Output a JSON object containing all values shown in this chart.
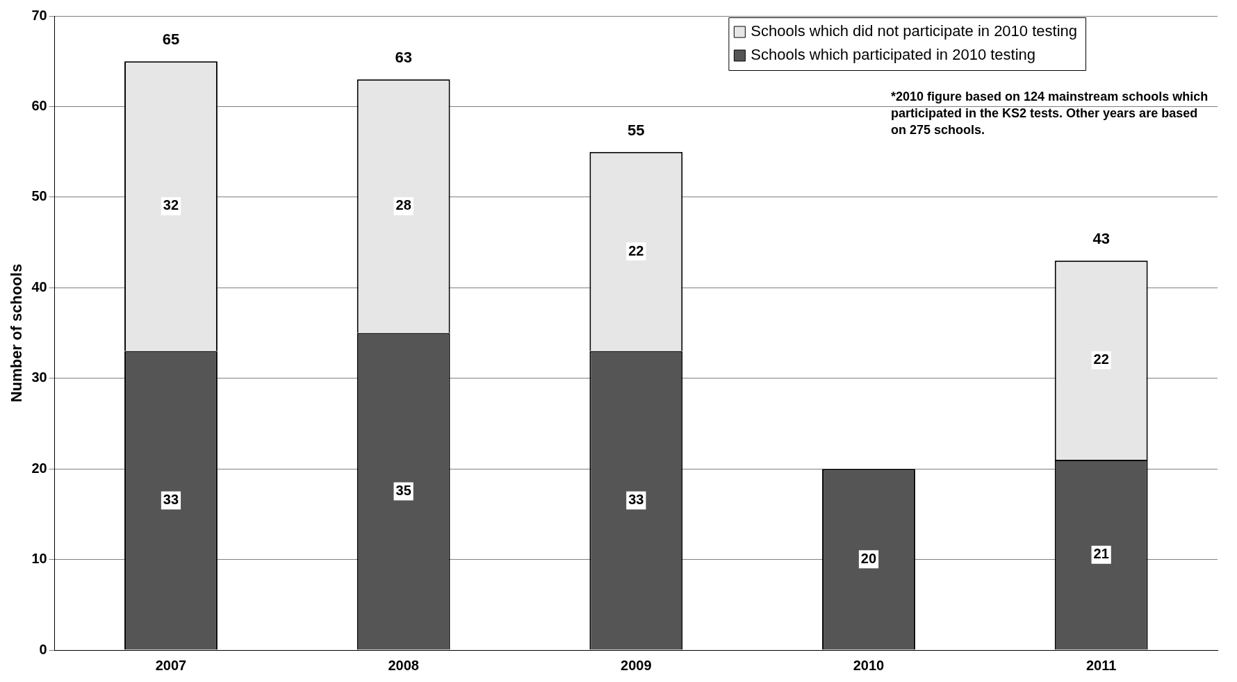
{
  "chart_data": {
    "type": "bar",
    "stacked": true,
    "categories": [
      "2007",
      "2008",
      "2009",
      "2010",
      "2011"
    ],
    "series": [
      {
        "name": "Schools which participated in 2010 testing",
        "color": "#555555",
        "values": [
          33,
          35,
          33,
          20,
          21
        ]
      },
      {
        "name": "Schools which did not participate in 2010 testing",
        "color": "#e6e6e6",
        "values": [
          32,
          28,
          22,
          null,
          22
        ]
      }
    ],
    "ylabel": "Number of schools",
    "ylim": [
      0,
      70
    ],
    "yticks": [
      0,
      10,
      20,
      30,
      40,
      50,
      60,
      70
    ],
    "grid": "y",
    "legend": "top right",
    "data_labels": true,
    "totals": [
      "65",
      "63",
      "55",
      null,
      "43"
    ],
    "annotations": [
      "*2010 figure based on 124 mainstream schools which participated in the KS2 tests. Other years are based on 275 schools."
    ]
  }
}
